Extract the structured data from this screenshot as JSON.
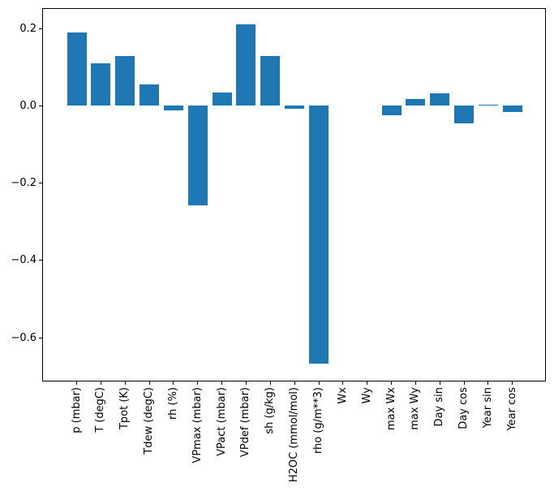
{
  "figure": {
    "background_color": "#ffffff",
    "spine_color": "#000000",
    "tick_label_color": "#000000"
  },
  "chart_data": {
    "type": "bar",
    "title": "",
    "xlabel": "",
    "ylabel": "",
    "bar_color": "#1f77b4",
    "grid": false,
    "legend": false,
    "categories": [
      "p (mbar)",
      "T (degC)",
      "Tpot (K)",
      "Tdew (degC)",
      "rh (%)",
      "VPmax (mbar)",
      "VPact (mbar)",
      "VPdef (mbar)",
      "sh (g/kg)",
      "H2OC (mmol/mol)",
      "rho (g/m**3)",
      "Wx",
      "Wy",
      "max Wx",
      "max Wy",
      "Day sin",
      "Day cos",
      "Year sin",
      "Year cos"
    ],
    "values": [
      0.19,
      0.11,
      0.128,
      0.055,
      -0.013,
      -0.258,
      0.035,
      0.21,
      0.128,
      -0.008,
      -0.667,
      0.0,
      0.0,
      -0.025,
      0.017,
      0.033,
      -0.046,
      0.003,
      -0.016
    ],
    "ylim": [
      -0.713,
      0.2525
    ],
    "yticks": [
      0.2,
      0.0,
      -0.2,
      -0.4,
      -0.6
    ],
    "ytick_labels": [
      "0.2",
      "0.0",
      "−0.2",
      "−0.4",
      "−0.6"
    ]
  }
}
